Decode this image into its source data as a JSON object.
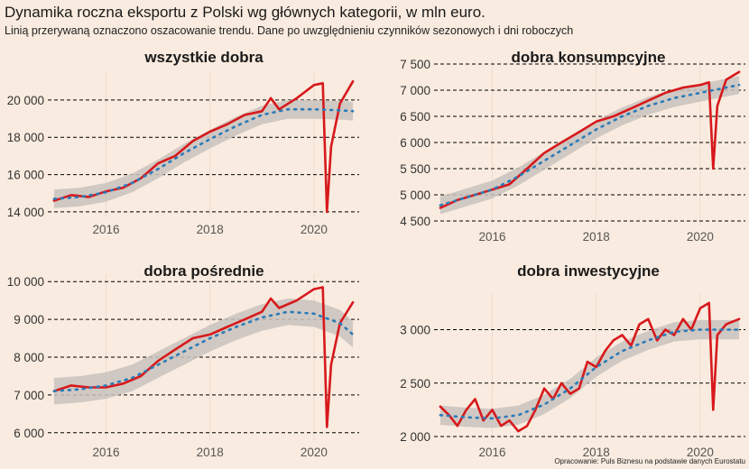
{
  "title": "Dynamika roczna eksportu z Polski wg głównych kategorii, w mln euro.",
  "subtitle": "Linią przerywaną oznaczono oszacowanie trendu. Dane po uwzględnieniu czynników sezonowych i dni roboczych",
  "caption": "Opracowanie: Puls Biznesu na podstawie danych Eurostatu",
  "colors": {
    "background": "#f9ebdf",
    "actual_line": "#d7191c",
    "trend_line": "#2b7bb9",
    "confidence_band": "#c9c2bd",
    "gridline": "#000000"
  },
  "chart_data": [
    {
      "type": "line",
      "title": "wszystkie dobra",
      "xlim": [
        2014.95,
        2020.8
      ],
      "ylim": [
        13900,
        21300
      ],
      "x_ticks": [
        2016,
        2018,
        2020
      ],
      "x_tick_labels": [
        "2016",
        "2018",
        "2020"
      ],
      "y_ticks": [
        14000,
        16000,
        18000,
        20000
      ],
      "y_tick_labels": [
        "14 000",
        "16 000",
        "18 000",
        "20 000"
      ],
      "grid": "dashed horizontal",
      "actual": {
        "x": [
          2015.0,
          2015.33,
          2015.67,
          2016.0,
          2016.33,
          2016.67,
          2017.0,
          2017.33,
          2017.67,
          2018.0,
          2018.33,
          2018.67,
          2019.0,
          2019.17,
          2019.33,
          2019.67,
          2020.0,
          2020.17,
          2020.25,
          2020.33,
          2020.5,
          2020.75
        ],
        "y": [
          14600,
          14900,
          14800,
          15100,
          15300,
          15800,
          16600,
          17000,
          17800,
          18300,
          18700,
          19200,
          19400,
          20100,
          19500,
          20100,
          20800,
          20900,
          14000,
          17500,
          19800,
          21000
        ]
      },
      "trend": {
        "x": [
          2015.0,
          2015.5,
          2016.0,
          2016.5,
          2017.0,
          2017.5,
          2018.0,
          2018.5,
          2019.0,
          2019.5,
          2020.0,
          2020.5,
          2020.75
        ],
        "y": [
          14700,
          14800,
          15050,
          15550,
          16300,
          17150,
          17900,
          18600,
          19200,
          19500,
          19500,
          19450,
          19400
        ]
      },
      "band_half_width": 500
    },
    {
      "type": "line",
      "title": "dobra konsumpcyjne",
      "xlim": [
        2014.95,
        2020.8
      ],
      "ylim": [
        4500,
        7500
      ],
      "x_ticks": [
        2016,
        2018,
        2020
      ],
      "x_tick_labels": [
        "2016",
        "2018",
        "2020"
      ],
      "y_ticks": [
        4500,
        5000,
        5500,
        6000,
        6500,
        7000,
        7500
      ],
      "y_tick_labels": [
        "4 500",
        "5 000",
        "5 500",
        "6 000",
        "6 500",
        "7 000",
        "7 500"
      ],
      "grid": "dashed horizontal",
      "actual": {
        "x": [
          2015.0,
          2015.33,
          2015.67,
          2016.0,
          2016.33,
          2016.67,
          2017.0,
          2017.33,
          2017.67,
          2018.0,
          2018.33,
          2018.67,
          2019.0,
          2019.33,
          2019.67,
          2020.0,
          2020.17,
          2020.25,
          2020.33,
          2020.5,
          2020.75
        ],
        "y": [
          4750,
          4900,
          5000,
          5100,
          5200,
          5500,
          5800,
          6000,
          6200,
          6400,
          6500,
          6650,
          6800,
          6950,
          7050,
          7100,
          7150,
          5500,
          6700,
          7200,
          7350
        ]
      },
      "trend": {
        "x": [
          2015.0,
          2015.5,
          2016.0,
          2016.5,
          2017.0,
          2017.5,
          2018.0,
          2018.5,
          2019.0,
          2019.5,
          2020.0,
          2020.5,
          2020.75
        ],
        "y": [
          4800,
          4950,
          5100,
          5350,
          5650,
          5950,
          6250,
          6500,
          6700,
          6850,
          6950,
          7050,
          7100
        ]
      },
      "band_half_width": 170
    },
    {
      "type": "line",
      "title": "dobra pośrednie",
      "xlim": [
        2014.95,
        2020.8
      ],
      "ylim": [
        5900,
        10100
      ],
      "x_ticks": [
        2016,
        2018,
        2020
      ],
      "x_tick_labels": [
        "2016",
        "2018",
        "2020"
      ],
      "y_ticks": [
        6000,
        7000,
        8000,
        9000,
        10000
      ],
      "y_tick_labels": [
        "6 000",
        "7 000",
        "8 000",
        "9 000",
        "10 000"
      ],
      "grid": "dashed horizontal",
      "actual": {
        "x": [
          2015.0,
          2015.33,
          2015.67,
          2016.0,
          2016.33,
          2016.67,
          2017.0,
          2017.33,
          2017.67,
          2018.0,
          2018.33,
          2018.67,
          2019.0,
          2019.17,
          2019.33,
          2019.67,
          2020.0,
          2020.17,
          2020.25,
          2020.33,
          2020.5,
          2020.75
        ],
        "y": [
          7100,
          7250,
          7200,
          7200,
          7300,
          7500,
          7900,
          8200,
          8500,
          8600,
          8800,
          9000,
          9200,
          9550,
          9300,
          9500,
          9800,
          9850,
          6150,
          7800,
          8900,
          9450
        ]
      },
      "trend": {
        "x": [
          2015.0,
          2015.5,
          2016.0,
          2016.5,
          2017.0,
          2017.5,
          2018.0,
          2018.5,
          2019.0,
          2019.5,
          2020.0,
          2020.5,
          2020.75
        ],
        "y": [
          7100,
          7150,
          7250,
          7450,
          7800,
          8150,
          8500,
          8800,
          9050,
          9200,
          9150,
          8900,
          8600
        ]
      },
      "band_half_width": 350
    },
    {
      "type": "line",
      "title": "dobra inwestycyjne",
      "xlim": [
        2014.95,
        2020.8
      ],
      "ylim": [
        2000,
        3300
      ],
      "x_ticks": [
        2016,
        2018,
        2020
      ],
      "x_tick_labels": [
        "2016",
        "2018",
        "2020"
      ],
      "y_ticks": [
        2000,
        2500,
        3000
      ],
      "y_tick_labels": [
        "2 000",
        "2 500",
        "3 000"
      ],
      "grid": "dashed horizontal",
      "actual": {
        "x": [
          2015.0,
          2015.17,
          2015.33,
          2015.5,
          2015.67,
          2015.83,
          2016.0,
          2016.17,
          2016.33,
          2016.5,
          2016.67,
          2016.83,
          2017.0,
          2017.17,
          2017.33,
          2017.5,
          2017.67,
          2017.83,
          2018.0,
          2018.17,
          2018.33,
          2018.5,
          2018.67,
          2018.83,
          2019.0,
          2019.17,
          2019.33,
          2019.5,
          2019.67,
          2019.83,
          2020.0,
          2020.17,
          2020.25,
          2020.33,
          2020.5,
          2020.75
        ],
        "y": [
          2280,
          2200,
          2100,
          2250,
          2350,
          2150,
          2250,
          2100,
          2150,
          2050,
          2100,
          2250,
          2450,
          2350,
          2500,
          2400,
          2450,
          2700,
          2650,
          2800,
          2900,
          2950,
          2850,
          3050,
          3100,
          2900,
          3000,
          2950,
          3100,
          3000,
          3200,
          3250,
          2250,
          2950,
          3050,
          3100
        ]
      },
      "trend": {
        "x": [
          2015.0,
          2015.5,
          2016.0,
          2016.5,
          2017.0,
          2017.5,
          2018.0,
          2018.5,
          2019.0,
          2019.5,
          2020.0,
          2020.5,
          2020.75
        ],
        "y": [
          2200,
          2180,
          2170,
          2200,
          2300,
          2450,
          2650,
          2800,
          2900,
          2980,
          3000,
          3000,
          3000
        ]
      },
      "band_half_width": 90
    }
  ]
}
